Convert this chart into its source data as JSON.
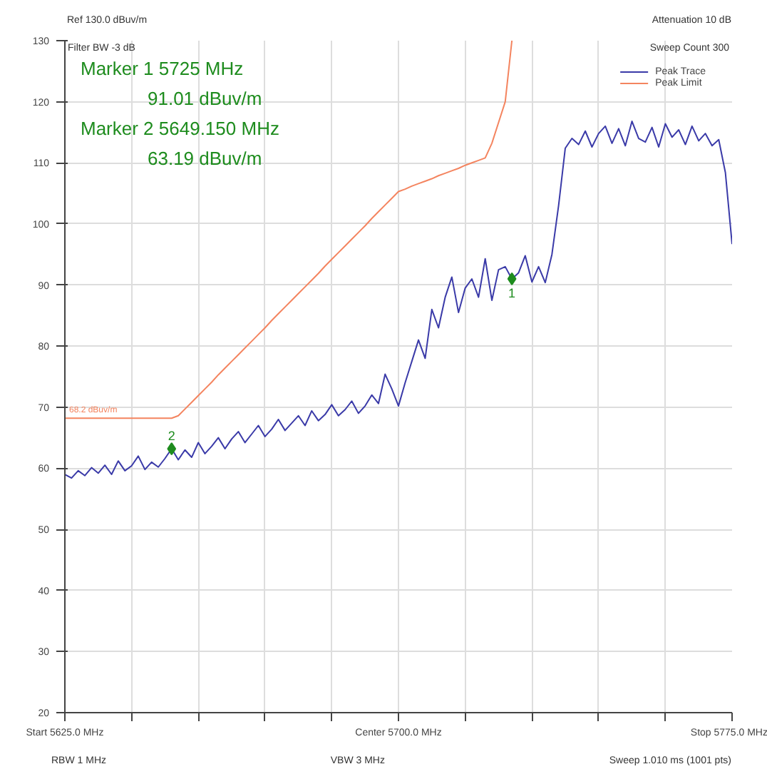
{
  "chart_data": {
    "type": "line",
    "categories": [
      "Start 5625.0 MHz",
      null,
      null,
      null,
      null,
      null,
      null,
      null,
      null,
      null,
      null,
      null,
      null,
      null,
      null,
      null,
      null,
      null,
      null,
      null,
      null,
      null,
      null,
      null,
      null,
      null,
      null,
      null,
      null,
      null,
      null,
      null,
      null,
      null,
      null,
      null,
      null,
      null,
      null,
      null,
      null,
      null,
      null,
      null,
      null,
      null,
      null,
      null,
      null,
      null,
      "Center 5700.0 MHz",
      null,
      null,
      null,
      null,
      null,
      null,
      null,
      null,
      null,
      null,
      null,
      null,
      null,
      null,
      null,
      null,
      null,
      null,
      null,
      null,
      null,
      null,
      null,
      null,
      null,
      null,
      null,
      null,
      null,
      null,
      null,
      null,
      null,
      null,
      null,
      null,
      null,
      null,
      null,
      null,
      null,
      null,
      null,
      null,
      null,
      null,
      null,
      null,
      null,
      "Stop 5775.0 MHz"
    ],
    "series": [
      {
        "name": "Peak Trace",
        "color": "#3a3aa8",
        "values": [
          59.0,
          58.4,
          59.6,
          58.8,
          60.1,
          59.2,
          60.5,
          59.0,
          61.2,
          59.6,
          60.4,
          62.0,
          59.8,
          61.0,
          60.2,
          61.6,
          63.2,
          61.4,
          63.0,
          61.8,
          64.2,
          62.4,
          63.6,
          65.0,
          63.2,
          64.8,
          66.0,
          64.2,
          65.6,
          67.0,
          65.2,
          66.4,
          68.0,
          66.2,
          67.4,
          68.6,
          67.0,
          69.4,
          67.8,
          68.8,
          70.4,
          68.6,
          69.6,
          71.0,
          69.0,
          70.2,
          72.0,
          70.6,
          75.4,
          73.0,
          70.2,
          74.0,
          77.5,
          81.0,
          78.0,
          86.0,
          83.0,
          88.0,
          91.3,
          85.5,
          89.5,
          91.0,
          88.0,
          94.3,
          87.5,
          92.5,
          93.0,
          91.0,
          92.0,
          94.8,
          90.5,
          93.0,
          90.4,
          95.0,
          103.0,
          112.4,
          114.0,
          113.0,
          115.2,
          112.6,
          114.8,
          116.0,
          113.2,
          115.6,
          112.8,
          116.8,
          114.0,
          113.4,
          115.8,
          112.6,
          116.4,
          114.2,
          115.4,
          113.0,
          116.0,
          113.6,
          114.8,
          112.8,
          113.8,
          108.4,
          96.7
        ]
      },
      {
        "name": "Peak Limit",
        "color": "#f4845f",
        "values": [
          68.2,
          68.2,
          68.2,
          68.2,
          68.2,
          68.2,
          68.2,
          68.2,
          68.2,
          68.2,
          68.2,
          68.2,
          68.2,
          68.2,
          68.2,
          68.2,
          68.2,
          68.6,
          69.7,
          70.8,
          71.9,
          73.0,
          74.1,
          75.3,
          76.4,
          77.5,
          78.6,
          79.7,
          80.8,
          81.9,
          83.0,
          84.2,
          85.3,
          86.4,
          87.5,
          88.6,
          89.7,
          90.8,
          91.9,
          93.1,
          94.2,
          95.3,
          96.4,
          97.5,
          98.6,
          99.7,
          100.9,
          102.0,
          103.1,
          104.2,
          105.3,
          105.7,
          106.2,
          106.6,
          107.0,
          107.4,
          107.9,
          108.3,
          108.7,
          109.1,
          109.6,
          110.0,
          110.4,
          110.8,
          113.2,
          116.6,
          120.0,
          130,
          null,
          null,
          null,
          null,
          null,
          null,
          null,
          null,
          null,
          null,
          null,
          null,
          null,
          null,
          null,
          null,
          null,
          null,
          null,
          null,
          null,
          null,
          null,
          null,
          null,
          null,
          null,
          null,
          null,
          null,
          null,
          null,
          null
        ]
      },
      {
        "type": "scatter",
        "color": "#1e8c1e",
        "marker": "diamond",
        "values": [
          null,
          null,
          null,
          null,
          null,
          null,
          null,
          null,
          null,
          null,
          null,
          null,
          null,
          null,
          null,
          null,
          63.19,
          null,
          null,
          null,
          null,
          null,
          null,
          null,
          null,
          null,
          null,
          null,
          null,
          null,
          null,
          null,
          null,
          null,
          null,
          null,
          null,
          null,
          null,
          null,
          null,
          null,
          null,
          null,
          null,
          null,
          null,
          null,
          null,
          null,
          null,
          null,
          null,
          null,
          null,
          null,
          null,
          null,
          null,
          null,
          null,
          null,
          null,
          null,
          null,
          null,
          null,
          91.01,
          null,
          null,
          null,
          null,
          null,
          null,
          null,
          null,
          null,
          null,
          null,
          null,
          null,
          null,
          null,
          null,
          null,
          null,
          null,
          null,
          null,
          null,
          null,
          null,
          null,
          null,
          null,
          null,
          null,
          null,
          null,
          null,
          null
        ]
      }
    ],
    "annotations": [
      "Ref 130.0 dBuv/m",
      "Filter BW -3 dB",
      "Marker 1 5725 MHz",
      "91.01 dBuv/m",
      "Marker 2 5649.150 MHz",
      "63.19 dBuv/m",
      "Attenuation 10 dB",
      "Sweep Count 300",
      "RBW 1 MHz",
      "VBW 3 MHz",
      "Sweep 1.010 ms (1001 pts)",
      {
        "text": "2",
        "y": 63.19
      },
      {
        "text": "1",
        "y": 91.01
      },
      {
        "text": "68.2 dBuv/m",
        "y": 68.2
      }
    ],
    "ylim": [
      20,
      130
    ],
    "yticks": [
      20,
      30,
      40,
      50,
      60,
      70,
      80,
      90,
      100,
      110,
      120,
      130
    ],
    "grid": true,
    "legend": "top right",
    "line_style": "solid",
    "marker": "none"
  }
}
